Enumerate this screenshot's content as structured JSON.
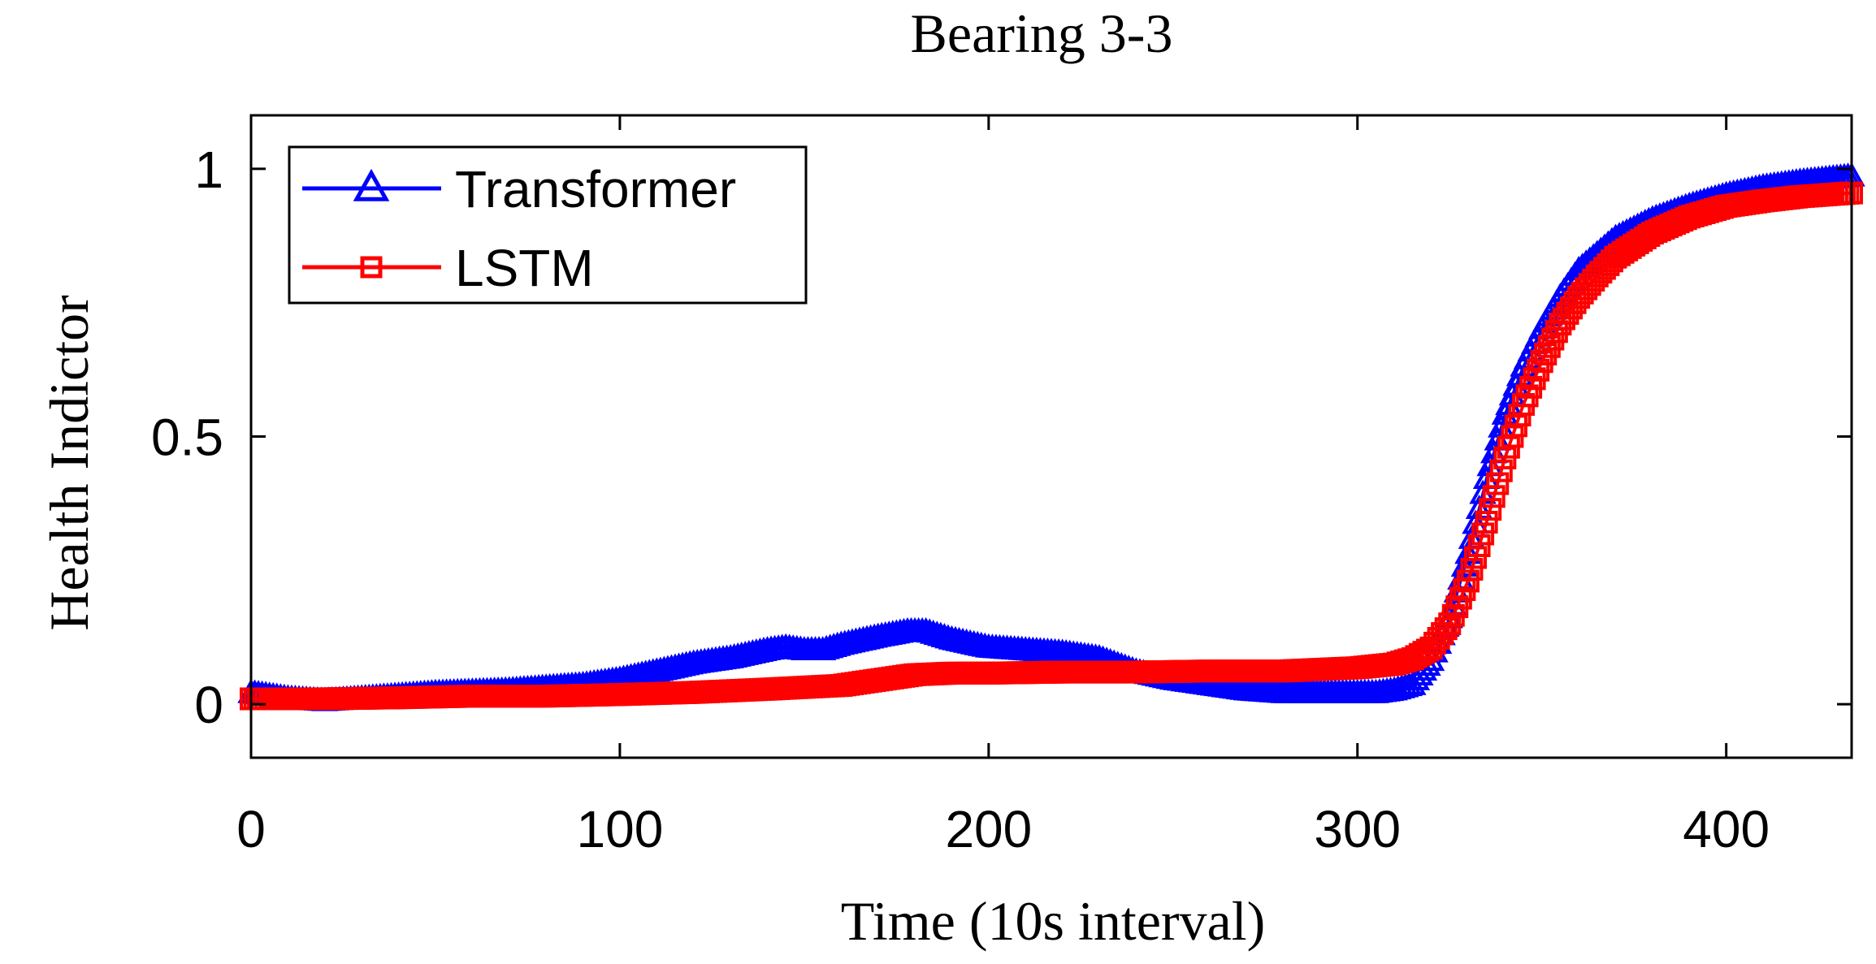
{
  "chart_data": {
    "type": "line",
    "title": "Bearing 3-3",
    "xlabel": "Time (10s interval)",
    "ylabel": "Health Indictor",
    "xlim": [
      0,
      434
    ],
    "ylim": [
      -0.1,
      1.1
    ],
    "xticks": [
      0,
      100,
      200,
      300,
      400
    ],
    "xtick_labels": [
      "0",
      "100",
      "200",
      "300",
      "400"
    ],
    "yticks": [
      0,
      0.5,
      1
    ],
    "ytick_labels": [
      "0",
      "0.5",
      "1"
    ],
    "legend_position": "top-left",
    "grid": false,
    "series": [
      {
        "name": "Transformer",
        "color": "#0000ff",
        "marker": "triangle",
        "x": [
          0,
          10,
          20,
          30,
          50,
          70,
          90,
          100,
          110,
          120,
          130,
          140,
          145,
          150,
          155,
          160,
          170,
          178,
          183,
          190,
          200,
          210,
          220,
          230,
          240,
          250,
          260,
          270,
          280,
          290,
          300,
          305,
          310,
          315,
          320,
          325,
          330,
          335,
          340,
          345,
          350,
          355,
          360,
          365,
          370,
          380,
          390,
          400,
          410,
          420,
          434
        ],
        "y": [
          0.02,
          0.01,
          0.005,
          0.01,
          0.02,
          0.025,
          0.035,
          0.045,
          0.06,
          0.075,
          0.085,
          0.1,
          0.105,
          0.1,
          0.1,
          0.11,
          0.125,
          0.135,
          0.135,
          0.12,
          0.105,
          0.1,
          0.095,
          0.085,
          0.06,
          0.045,
          0.035,
          0.025,
          0.02,
          0.02,
          0.02,
          0.02,
          0.025,
          0.035,
          0.08,
          0.16,
          0.28,
          0.42,
          0.54,
          0.63,
          0.7,
          0.76,
          0.81,
          0.84,
          0.87,
          0.905,
          0.93,
          0.95,
          0.965,
          0.975,
          0.985
        ]
      },
      {
        "name": "LSTM",
        "color": "#ff0000",
        "marker": "square",
        "x": [
          0,
          20,
          40,
          60,
          80,
          100,
          120,
          140,
          160,
          170,
          180,
          190,
          200,
          220,
          240,
          260,
          280,
          300,
          310,
          315,
          320,
          325,
          330,
          335,
          340,
          345,
          350,
          355,
          360,
          365,
          370,
          380,
          390,
          400,
          410,
          420,
          434
        ],
        "y": [
          0.01,
          0.01,
          0.012,
          0.015,
          0.015,
          0.018,
          0.022,
          0.028,
          0.035,
          0.045,
          0.055,
          0.058,
          0.058,
          0.06,
          0.06,
          0.062,
          0.062,
          0.068,
          0.075,
          0.085,
          0.105,
          0.15,
          0.23,
          0.34,
          0.46,
          0.56,
          0.64,
          0.71,
          0.76,
          0.8,
          0.835,
          0.88,
          0.91,
          0.93,
          0.94,
          0.948,
          0.955
        ]
      }
    ]
  }
}
